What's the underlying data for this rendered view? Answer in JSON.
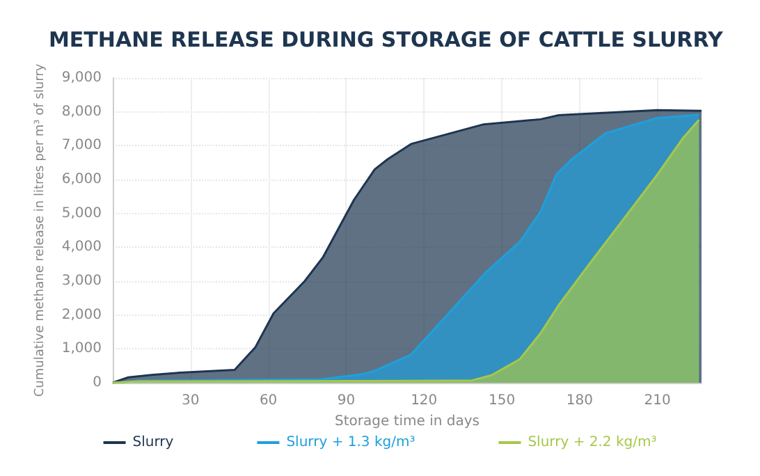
{
  "chart_data": {
    "type": "area",
    "title": "METHANE RELEASE DURING STORAGE OF CATTLE SLURRY",
    "xlabel": "Storage time in days",
    "ylabel": "Cumulative methane release in litres per m³ of slurry",
    "xlim": [
      0,
      227
    ],
    "xticks": [
      30,
      60,
      90,
      120,
      150,
      180,
      210
    ],
    "ylim": [
      0,
      9000
    ],
    "yticks": [
      0,
      {
        "value": 1000,
        "label": "1,000"
      },
      {
        "value": 2000,
        "label": "2,000"
      },
      {
        "value": 3000,
        "label": "3,000"
      },
      {
        "value": 4000,
        "label": "4,000"
      },
      {
        "value": 5000,
        "label": "5,000"
      },
      {
        "value": 6000,
        "label": "6,000"
      },
      {
        "value": 7000,
        "label": "7,000"
      },
      {
        "value": 8000,
        "label": "8,000"
      },
      {
        "value": 9000,
        "label": "9,000"
      }
    ],
    "grid": true,
    "legend": "bottom",
    "marker": "none",
    "line_style": "solid",
    "series": [
      {
        "name": "Slurry",
        "color": "#1e3550",
        "x": [
          0,
          6,
          15,
          26,
          47,
          55,
          62,
          74,
          81,
          93,
          101,
          106,
          115,
          143,
          165,
          172,
          210,
          227
        ],
        "values": [
          0,
          160,
          230,
          300,
          380,
          1050,
          2050,
          3000,
          3700,
          5400,
          6300,
          6600,
          7050,
          7630,
          7780,
          7900,
          8050,
          8030
        ]
      },
      {
        "name": "Slurry + 1.3 kg/m³",
        "color": "#1ea0dc",
        "x": [
          0,
          10,
          50,
          80,
          96,
          101,
          115,
          144,
          157,
          165,
          171,
          177,
          190,
          210,
          226
        ],
        "values": [
          0,
          60,
          80,
          100,
          250,
          350,
          830,
          3270,
          4170,
          5060,
          6150,
          6600,
          7370,
          7820,
          7910
        ]
      },
      {
        "name": "Slurry + 2.2 kg/m³",
        "color": "#a6c84a",
        "x": [
          0,
          10,
          100,
          130,
          138,
          146,
          157,
          165,
          172,
          184,
          198,
          210,
          220,
          226
        ],
        "values": [
          0,
          40,
          50,
          60,
          60,
          220,
          700,
          1470,
          2300,
          3530,
          4940,
          6150,
          7240,
          7760
        ]
      }
    ]
  }
}
